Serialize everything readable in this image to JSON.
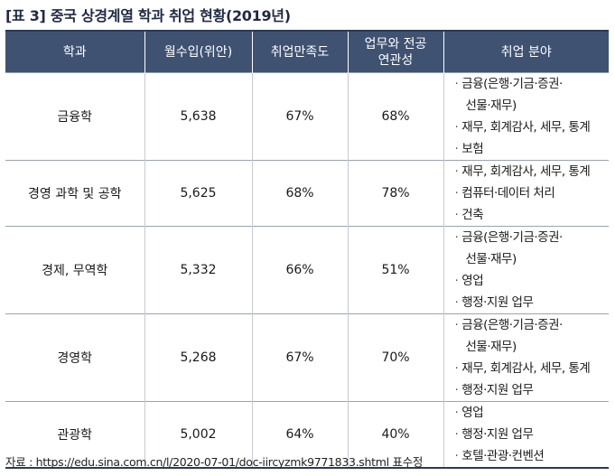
{
  "title": {
    "tag": "[표 3]",
    "text": "중국 상경계열 학과 취업 현황(2019년)"
  },
  "headers": {
    "major": "학과",
    "salary": "월수입(위안)",
    "satisfaction": "취업만족도",
    "relevance_line1": "업무와 전공",
    "relevance_line2": "연관성",
    "fields": "취업 분야"
  },
  "rows": [
    {
      "major": "금융학",
      "salary": "5,638",
      "satisfaction": "67%",
      "relevance": "68%",
      "fields": [
        "금융(은행·기금·증권·",
        "선물·재무)",
        "재무, 회계감사, 세무, 통계",
        "보험"
      ]
    },
    {
      "major": "경영 과학 및 공학",
      "salary": "5,625",
      "satisfaction": "68%",
      "relevance": "78%",
      "fields": [
        "재무, 회계감사, 세무, 통계",
        "컴퓨터·데이터 처리",
        "건축"
      ]
    },
    {
      "major": "경제, 무역학",
      "salary": "5,332",
      "satisfaction": "66%",
      "relevance": "51%",
      "fields": [
        "금융(은행·기금·증권·",
        "선물·재무)",
        "영업",
        "행정·지원 업무"
      ]
    },
    {
      "major": "경영학",
      "salary": "5,268",
      "satisfaction": "67%",
      "relevance": "70%",
      "fields": [
        "금융(은행·기금·증권·",
        "선물·재무)",
        "재무, 회계감사, 세무, 통계",
        "행정·지원 업무"
      ]
    },
    {
      "major": "관광학",
      "salary": "5,002",
      "satisfaction": "64%",
      "relevance": "40%",
      "fields": [
        "영업",
        "행정·지원 업무",
        "호텔·관광·컨벤션"
      ]
    }
  ],
  "source": "자료 : https://edu.sina.com.cn/l/2020-07-01/doc-iircyzmk9771833.shtml 표수정"
}
